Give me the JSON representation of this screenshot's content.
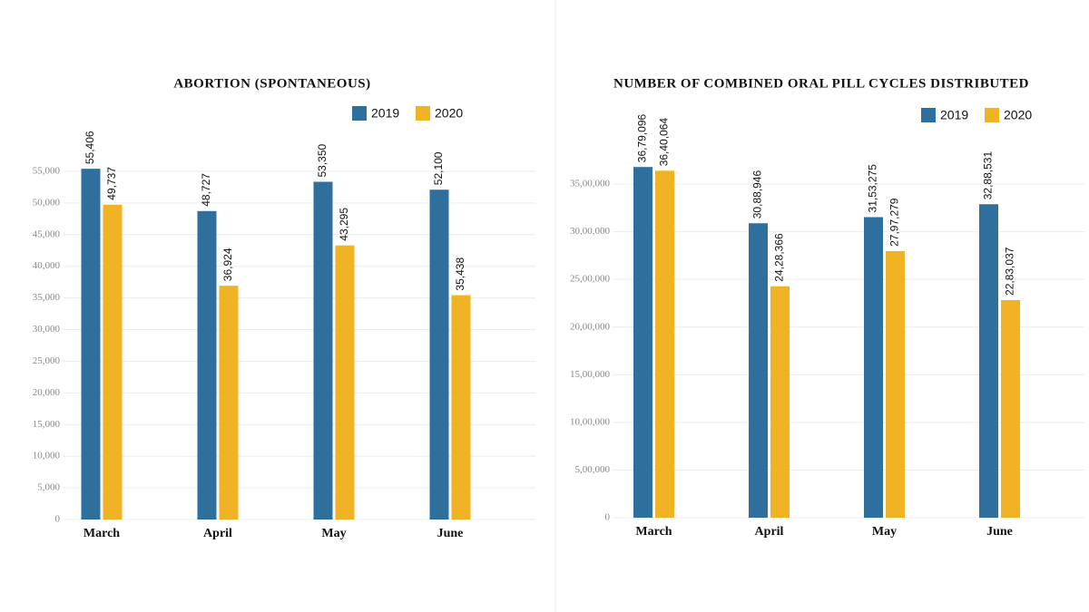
{
  "chart_data": [
    {
      "type": "bar",
      "title": "ABORTION (SPONTANEOUS)",
      "categories": [
        "March",
        "April",
        "May",
        "June"
      ],
      "series": [
        {
          "name": "2019",
          "color": "#2e6f9e",
          "values": [
            55406,
            48727,
            53350,
            52100
          ],
          "value_labels": [
            "55,406",
            "48,727",
            "53,350",
            "52,100"
          ]
        },
        {
          "name": "2020",
          "color": "#f0b323",
          "values": [
            49737,
            36924,
            43295,
            35438
          ],
          "value_labels": [
            "49,737",
            "36,924",
            "43,295",
            "35,438"
          ]
        }
      ],
      "ylim": [
        0,
        56000
      ],
      "yticks": [
        0,
        {
          "value": 5000,
          "label": "5,000"
        },
        {
          "value": 10000,
          "label": "10,000"
        },
        {
          "value": 15000,
          "label": "15,000"
        },
        {
          "value": 20000,
          "label": "20,000"
        },
        {
          "value": 25000,
          "label": "25,000"
        },
        {
          "value": 30000,
          "label": "30,000"
        },
        {
          "value": 35000,
          "label": "35,000"
        },
        {
          "value": 40000,
          "label": "40,000"
        },
        {
          "value": 45000,
          "label": "45,000"
        },
        {
          "value": 50000,
          "label": "50,000"
        },
        {
          "value": 55000,
          "label": "55,000"
        }
      ],
      "grid": true
    },
    {
      "type": "bar",
      "title": "NUMBER OF COMBINED ORAL PILL CYCLES DISTRIBUTED",
      "categories": [
        "March",
        "April",
        "May",
        "June"
      ],
      "series": [
        {
          "name": "2019",
          "color": "#2e6f9e",
          "values": [
            3679096,
            3088946,
            3153275,
            3288531
          ],
          "value_labels": [
            "36,79,096",
            "30,88,946",
            "31,53,275",
            "32,88,531"
          ]
        },
        {
          "name": "2020",
          "color": "#f0b323",
          "values": [
            3640064,
            2428366,
            2797279,
            2283037
          ],
          "value_labels": [
            "36,40,064",
            "24,28,366",
            "27,97,279",
            "22,83,037"
          ]
        }
      ],
      "ylim": [
        0,
        3700000
      ],
      "yticks": [
        0,
        {
          "value": 500000,
          "label": "5,00,000"
        },
        {
          "value": 1000000,
          "label": "10,00,000"
        },
        {
          "value": 1500000,
          "label": "15,00,000"
        },
        {
          "value": 2000000,
          "label": "20,00,000"
        },
        {
          "value": 2500000,
          "label": "25,00,000"
        },
        {
          "value": 3000000,
          "label": "30,00,000"
        },
        {
          "value": 3500000,
          "label": "35,00,000"
        }
      ],
      "grid": true
    }
  ]
}
